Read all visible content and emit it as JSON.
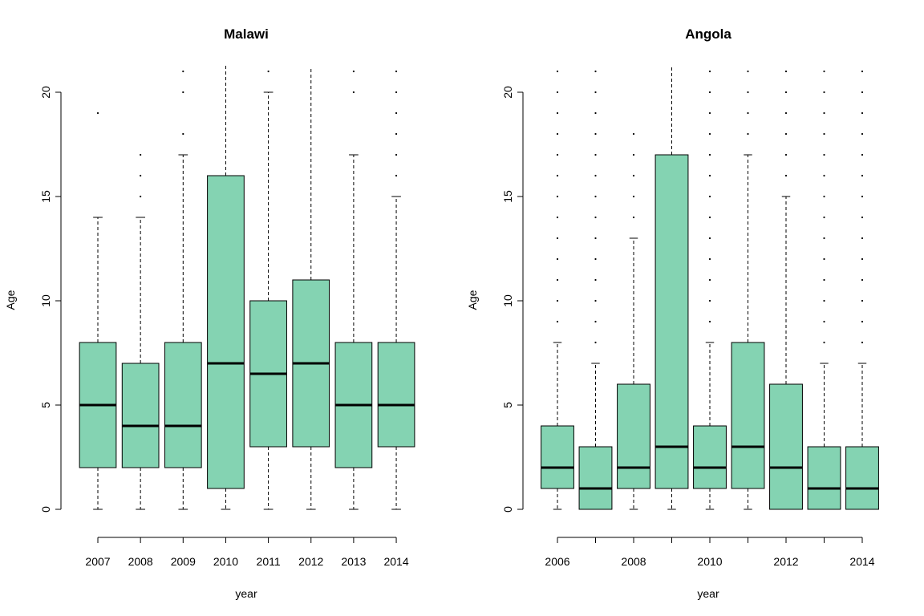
{
  "colors": {
    "box_fill": "#84D3B2",
    "stroke": "#000000"
  },
  "chart_data": [
    {
      "type": "box",
      "title": "Malawi",
      "xlabel": "year",
      "ylabel": "Age",
      "ylim": [
        0,
        21
      ],
      "yticks": [
        0,
        5,
        10,
        15,
        20
      ],
      "categories": [
        "2007",
        "2008",
        "2009",
        "2010",
        "2011",
        "2012",
        "2013",
        "2014"
      ],
      "xtick_labels": [
        "2007",
        "2008",
        "2009",
        "2010",
        "2011",
        "2012",
        "2013",
        "2014"
      ],
      "boxes": [
        {
          "min": 0,
          "q1": 2,
          "median": 5,
          "q3": 8,
          "max": 14,
          "outliers": [
            19
          ]
        },
        {
          "min": 0,
          "q1": 2,
          "median": 4,
          "q3": 7,
          "max": 14,
          "outliers": [
            15,
            16,
            17
          ]
        },
        {
          "min": 0,
          "q1": 2,
          "median": 4,
          "q3": 8,
          "max": 17,
          "outliers": [
            18,
            20,
            21
          ]
        },
        {
          "min": 0,
          "q1": 1,
          "median": 7,
          "q3": 16,
          "max": 21.3,
          "outliers": []
        },
        {
          "min": 0,
          "q1": 3,
          "median": 6.5,
          "q3": 10,
          "max": 20,
          "outliers": [
            21
          ]
        },
        {
          "min": 0,
          "q1": 3,
          "median": 7,
          "q3": 11,
          "max": 21.2,
          "outliers": []
        },
        {
          "min": 0,
          "q1": 2,
          "median": 5,
          "q3": 8,
          "max": 17,
          "outliers": [
            20,
            21
          ]
        },
        {
          "min": 0,
          "q1": 3,
          "median": 5,
          "q3": 8,
          "max": 15,
          "outliers": [
            16,
            17,
            18,
            19,
            20,
            21
          ]
        }
      ]
    },
    {
      "type": "box",
      "title": "Angola",
      "xlabel": "year",
      "ylabel": "Age",
      "ylim": [
        0,
        21
      ],
      "yticks": [
        0,
        5,
        10,
        15,
        20
      ],
      "categories": [
        "2006",
        "2007",
        "2008",
        "2009",
        "2010",
        "2011",
        "2012",
        "2013",
        "2014"
      ],
      "xtick_labels": [
        "2006",
        "",
        "2008",
        "",
        "2010",
        "",
        "2012",
        "",
        "2014"
      ],
      "boxes": [
        {
          "min": 0,
          "q1": 1,
          "median": 2,
          "q3": 4,
          "max": 8,
          "outliers": [
            9,
            10,
            11,
            12,
            13,
            14,
            15,
            16,
            17,
            18,
            19,
            20,
            21
          ]
        },
        {
          "min": 0,
          "q1": 0,
          "median": 1,
          "q3": 3,
          "max": 7,
          "outliers": [
            8,
            9,
            10,
            11,
            12,
            13,
            14,
            15,
            16,
            17,
            18,
            19,
            20,
            21
          ]
        },
        {
          "min": 0,
          "q1": 1,
          "median": 2,
          "q3": 6,
          "max": 13,
          "outliers": [
            14,
            15,
            16,
            17,
            18
          ]
        },
        {
          "min": 0,
          "q1": 1,
          "median": 3,
          "q3": 17,
          "max": 21.3,
          "outliers": []
        },
        {
          "min": 0,
          "q1": 1,
          "median": 2,
          "q3": 4,
          "max": 8,
          "outliers": [
            9,
            10,
            11,
            12,
            13,
            14,
            15,
            16,
            17,
            18,
            19,
            20,
            21
          ]
        },
        {
          "min": 0,
          "q1": 1,
          "median": 3,
          "q3": 8,
          "max": 17,
          "outliers": [
            18,
            19,
            20,
            21
          ]
        },
        {
          "min": 0,
          "q1": 0,
          "median": 2,
          "q3": 6,
          "max": 15,
          "outliers": [
            16,
            17,
            18,
            19,
            20,
            21
          ]
        },
        {
          "min": 0,
          "q1": 0,
          "median": 1,
          "q3": 3,
          "max": 7,
          "outliers": [
            8,
            9,
            10,
            11,
            12,
            13,
            14,
            15,
            16,
            17,
            18,
            19,
            20,
            21
          ]
        },
        {
          "min": 0,
          "q1": 0,
          "median": 1,
          "q3": 3,
          "max": 7,
          "outliers": [
            8,
            9,
            10,
            11,
            12,
            13,
            14,
            15,
            16,
            17,
            18,
            19,
            20,
            21
          ]
        }
      ]
    }
  ]
}
